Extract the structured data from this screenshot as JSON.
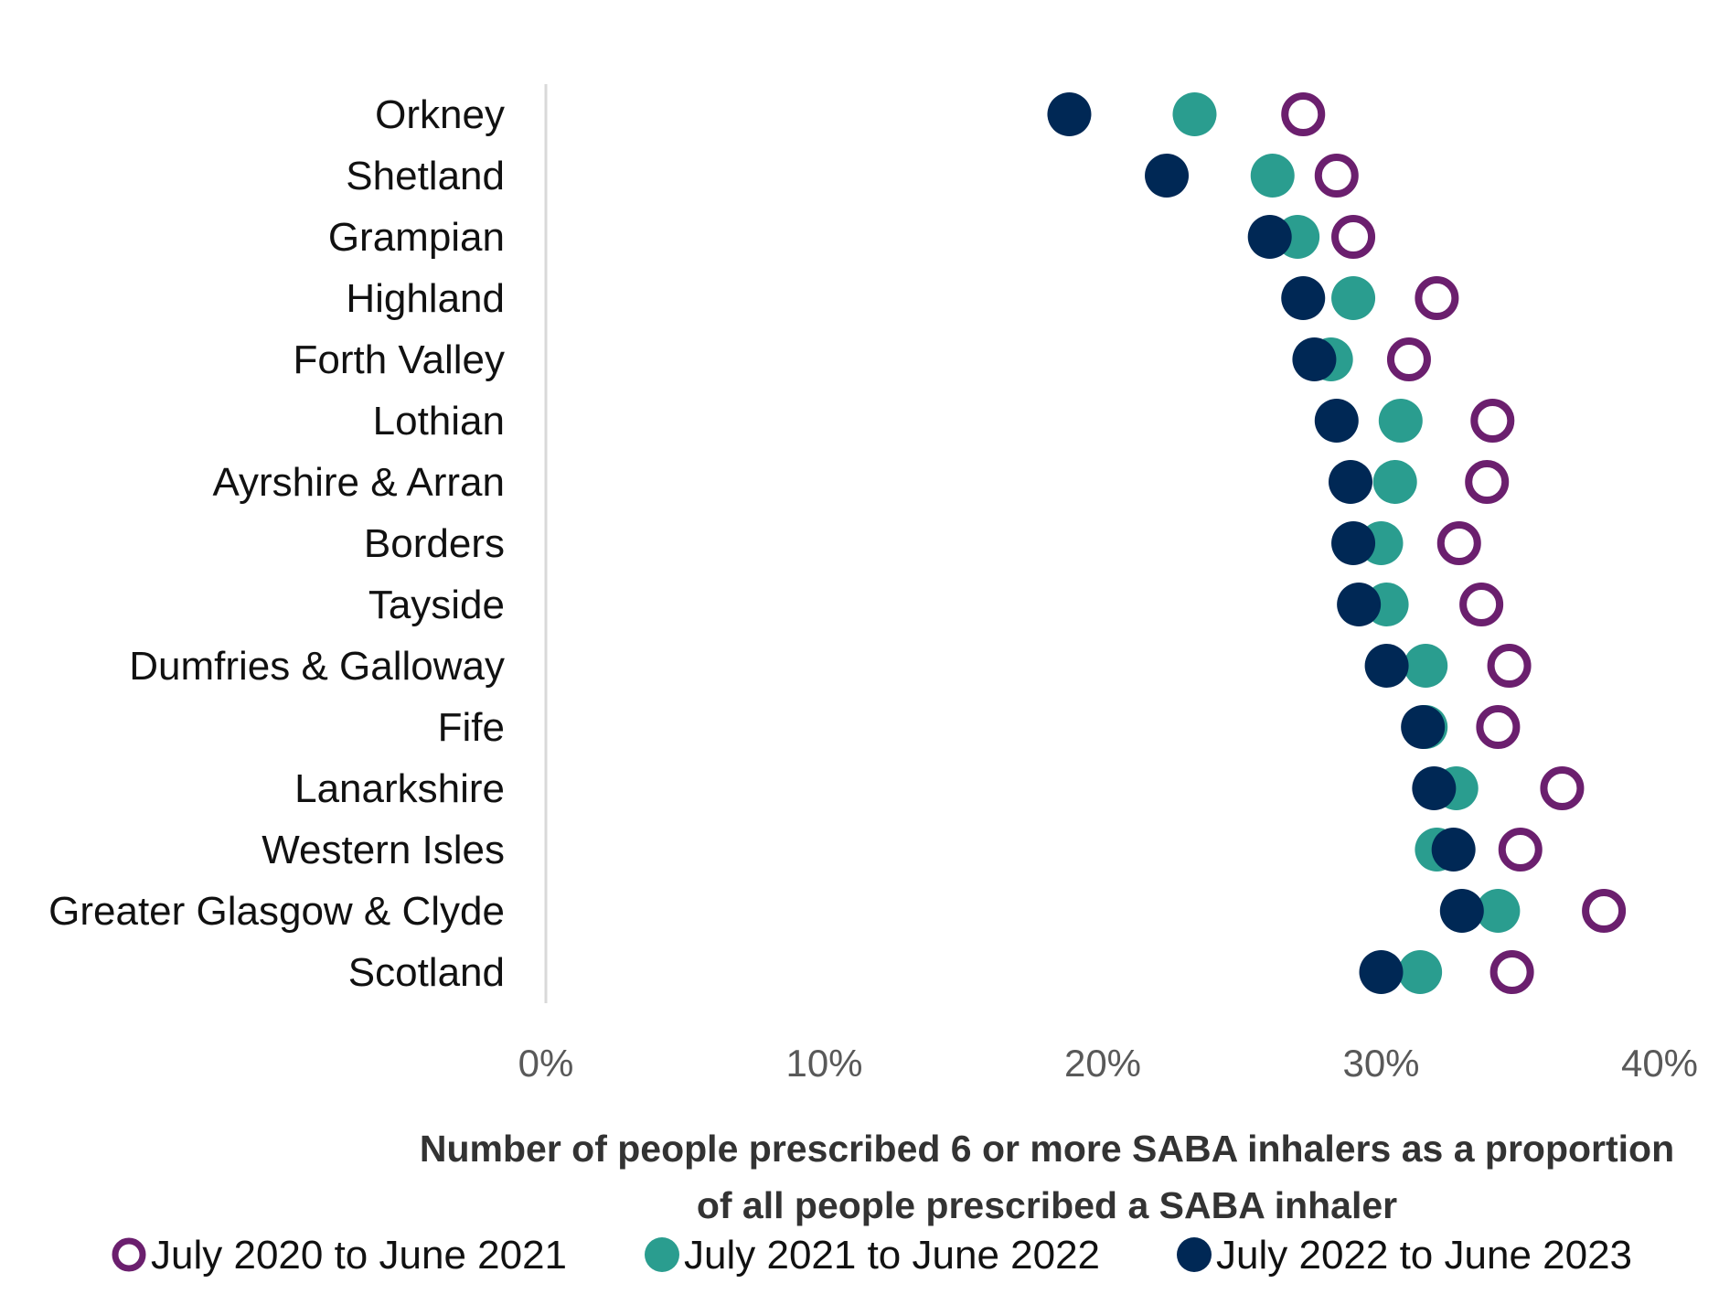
{
  "chart_data": {
    "type": "scatter",
    "title": "",
    "xlabel_lines": [
      "Number of people prescribed 6 or more SABA inhalers as a proportion",
      "of all people prescribed a SABA inhaler"
    ],
    "ylabel": "",
    "xlim": [
      0,
      40
    ],
    "xticks": [
      0,
      10,
      20,
      30,
      40
    ],
    "xtick_labels": [
      "0%",
      "10%",
      "20%",
      "30%",
      "40%"
    ],
    "grid": false,
    "legend_position": "bottom",
    "categories": [
      "Orkney",
      "Shetland",
      "Grampian",
      "Highland",
      "Forth Valley",
      "Lothian",
      "Ayrshire & Arran",
      "Borders",
      "Tayside",
      "Dumfries & Galloway",
      "Fife",
      "Lanarkshire",
      "Western Isles",
      "Greater Glasgow & Clyde",
      "Scotland"
    ],
    "series": [
      {
        "name": "July 2020 to June 2021",
        "marker": "hollow",
        "color": "#6B1F6E",
        "values": [
          27.2,
          28.4,
          29.0,
          32.0,
          31.0,
          34.0,
          33.8,
          32.8,
          33.6,
          34.6,
          34.2,
          36.5,
          35.0,
          38.0,
          34.7
        ]
      },
      {
        "name": "July 2021 to June 2022",
        "marker": "filled",
        "color": "#2A9D8F",
        "values": [
          23.3,
          26.1,
          27.0,
          29.0,
          28.2,
          30.7,
          30.5,
          30.0,
          30.2,
          31.6,
          31.6,
          32.7,
          32.0,
          34.2,
          31.4
        ]
      },
      {
        "name": "July 2022 to June 2023",
        "marker": "filled",
        "color": "#002855",
        "values": [
          18.8,
          22.3,
          26.0,
          27.2,
          27.6,
          28.4,
          28.9,
          29.0,
          29.2,
          30.2,
          31.5,
          31.9,
          32.6,
          32.9,
          30.0
        ]
      }
    ]
  }
}
